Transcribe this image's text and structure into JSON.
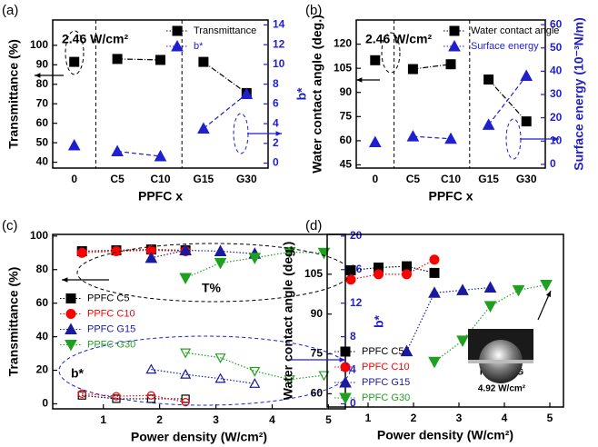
{
  "chart_data": [
    {
      "type": "line",
      "panel_label": "(a)",
      "x_label": "PPFC x",
      "y_label": "Transmittance (%)",
      "y2_label": "b*",
      "categories": [
        "0",
        "C5",
        "C10",
        "G15",
        "G30"
      ],
      "series": [
        {
          "name": "Transmittance",
          "color": "#000000",
          "marker": "square",
          "values": [
            91.5,
            93,
            92.5,
            91.5,
            75.5
          ]
        },
        {
          "name": "b*",
          "color": "#1f1fd0",
          "marker": "triangle-up",
          "axis": "y2",
          "values": [
            1.8,
            1.2,
            0.7,
            3.5,
            7.0
          ]
        }
      ],
      "ylim": [
        37,
        113
      ],
      "yticks": [
        40,
        50,
        60,
        70,
        80,
        90,
        100
      ],
      "y2lim": [
        -0.5,
        14.5
      ],
      "y2ticks": [
        0,
        2,
        4,
        6,
        8,
        10,
        12,
        14
      ],
      "y2_color": "#1f1fd0",
      "annotations": [
        "2.46 W/cm²"
      ],
      "legend": "upper right"
    },
    {
      "type": "line",
      "panel_label": "(b)",
      "x_label": "PPFC x",
      "y_label": "Water contact angle (deg.)",
      "y2_label": "Surface energy (10⁻³N/m)",
      "categories": [
        "0",
        "C5",
        "C10",
        "G15",
        "G30"
      ],
      "series": [
        {
          "name": "Water contact angle",
          "color": "#000000",
          "marker": "square",
          "values": [
            110,
            104.5,
            107.5,
            98,
            72
          ]
        },
        {
          "name": "Surface energy",
          "color": "#1f1fd0",
          "marker": "triangle-up",
          "axis": "y2",
          "values": [
            9.5,
            12,
            11,
            17,
            38
          ]
        }
      ],
      "ylim": [
        43,
        135
      ],
      "yticks": [
        45,
        60,
        75,
        90,
        105,
        120
      ],
      "y2lim": [
        -1.6,
        62
      ],
      "y2ticks": [
        0,
        10,
        20,
        30,
        40,
        50,
        60
      ],
      "y2_color": "#1f1fd0",
      "annotations": [
        "2.46 W/cm²"
      ],
      "legend": "upper right"
    },
    {
      "type": "line",
      "panel_label": "(c)",
      "x_label": "Power density (W/cm²)",
      "y_label": "Transmittance (%)",
      "y2_label": "b*",
      "series": [
        {
          "name": "PPFC C5",
          "color": "#000000",
          "marker": "square",
          "x": [
            0.62,
            1.23,
            1.85,
            2.46
          ],
          "values": [
            91,
            91.5,
            92,
            91.5
          ]
        },
        {
          "name": "PPFC C10",
          "color": "#ff0000",
          "marker": "circle",
          "x": [
            0.62,
            1.23,
            1.85,
            2.46
          ],
          "values": [
            90,
            91,
            91.5,
            91
          ]
        },
        {
          "name": "PPFC G15",
          "color": "#1a1aa0",
          "marker": "triangle-up",
          "x": [
            1.85,
            2.46,
            3.08,
            3.69
          ],
          "values": [
            87,
            91.5,
            91,
            89.5
          ]
        },
        {
          "name": "PPFC G30",
          "color": "#20a020",
          "marker": "triangle-down",
          "x": [
            2.46,
            3.08,
            3.69,
            4.31,
            4.92
          ],
          "values": [
            75,
            84,
            87,
            90.5,
            90
          ]
        },
        {
          "color": "#000000",
          "marker": "square",
          "axis": "y2",
          "hollow": true,
          "x": [
            0.62,
            1.23,
            1.85,
            2.46
          ],
          "values": [
            1.0,
            0.6,
            0.6,
            0.6
          ]
        },
        {
          "color": "#ff0000",
          "marker": "circle",
          "axis": "y2",
          "hollow": true,
          "x": [
            0.62,
            1.23,
            1.85,
            2.46
          ],
          "values": [
            1.2,
            0.9,
            1.0,
            0.2
          ]
        },
        {
          "color": "#1a1aa0",
          "marker": "triangle-up",
          "axis": "y2",
          "hollow": true,
          "x": [
            1.85,
            2.46,
            3.08,
            3.69
          ],
          "values": [
            4.1,
            3.5,
            3.0,
            2.4
          ]
        },
        {
          "color": "#20a020",
          "marker": "triangle-down",
          "axis": "y2",
          "hollow": true,
          "x": [
            2.46,
            3.08,
            3.69,
            4.31,
            4.92
          ],
          "values": [
            6.1,
            5.5,
            3.9,
            2.9,
            3.4
          ]
        }
      ],
      "xlim": [
        0.1,
        5.3
      ],
      "xticks": [
        1,
        2,
        3,
        4,
        5
      ],
      "ylim": [
        -3,
        101
      ],
      "yticks": [
        0,
        20,
        40,
        60,
        80,
        100
      ],
      "y2lim": [
        -0.6,
        20.2
      ],
      "y2ticks": [
        0,
        4,
        8,
        12,
        16,
        20
      ],
      "y2_color": "#1f1fd0",
      "annotations": [
        "T%",
        "b*"
      ],
      "legend": "center left"
    },
    {
      "type": "line",
      "panel_label": "(d)",
      "x_label": "Power density (W/cm²)",
      "y_label": "Water contact angle (deg.)",
      "series": [
        {
          "name": "PPFC C5",
          "color": "#000000",
          "marker": "square",
          "x": [
            0.62,
            1.23,
            1.85,
            2.46
          ],
          "values": [
            106.5,
            107.5,
            108,
            105.5
          ]
        },
        {
          "name": "PPFC C10",
          "color": "#ff0000",
          "marker": "circle",
          "x": [
            0.62,
            1.23,
            1.85,
            2.46
          ],
          "values": [
            103,
            105,
            105,
            110.5
          ]
        },
        {
          "name": "PPFC G15",
          "color": "#1a1aa0",
          "marker": "triangle-up",
          "x": [
            1.85,
            2.46,
            3.08,
            3.69
          ],
          "values": [
            76,
            98,
            99,
            100
          ]
        },
        {
          "name": "PPFC G30",
          "color": "#20a020",
          "marker": "triangle-down",
          "x": [
            2.46,
            3.08,
            3.69,
            4.31,
            4.92
          ],
          "values": [
            72,
            80,
            93,
            99,
            101
          ]
        }
      ],
      "xlim": [
        0.1,
        5.3
      ],
      "xticks": [
        1,
        2,
        3,
        4,
        5
      ],
      "ylim": [
        55,
        120
      ],
      "yticks": [
        60,
        75,
        90,
        105
      ],
      "annotations": [
        "PPFC 30G",
        "4.92 W/cm²"
      ],
      "legend": "lower left"
    }
  ]
}
